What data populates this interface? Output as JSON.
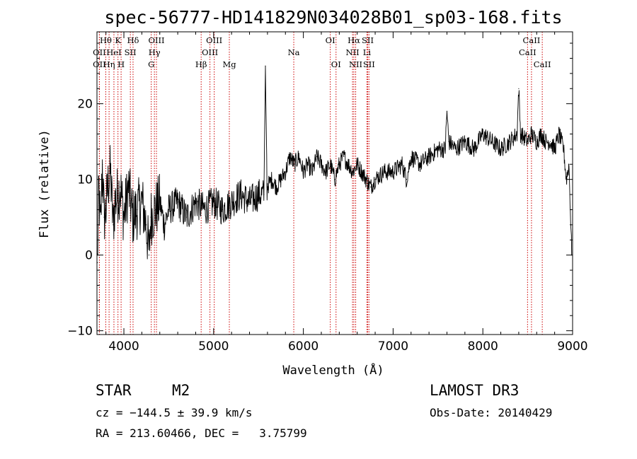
{
  "chart_data": {
    "type": "line",
    "title": "spec-56777-HD141829N034028B01_sp03-168.fits",
    "xlabel": "Wavelength (Å)",
    "ylabel": "Flux (relative)",
    "xlim": [
      3700,
      9000
    ],
    "ylim": [
      -10.5,
      29.5
    ],
    "xticks": [
      4000,
      5000,
      6000,
      7000,
      8000,
      9000
    ],
    "yticks": [
      -10,
      0,
      10,
      20
    ],
    "series": [
      {
        "name": "Flux",
        "x": [
          3705,
          3720,
          3740,
          3760,
          3780,
          3800,
          3820,
          3850,
          3880,
          3900,
          3930,
          3960,
          4000,
          4050,
          4100,
          4150,
          4200,
          4250,
          4280,
          4300,
          4350,
          4400,
          4450,
          4500,
          4600,
          4700,
          4800,
          4900,
          5000,
          5100,
          5200,
          5300,
          5400,
          5500,
          5560,
          5577,
          5595,
          5650,
          5700,
          5800,
          5850,
          5900,
          5950,
          6000,
          6050,
          6100,
          6150,
          6200,
          6250,
          6300,
          6350,
          6400,
          6450,
          6500,
          6550,
          6600,
          6650,
          6700,
          6750,
          6800,
          6900,
          7000,
          7100,
          7150,
          7200,
          7300,
          7400,
          7500,
          7580,
          7600,
          7620,
          7700,
          7800,
          7900,
          8000,
          8100,
          8200,
          8300,
          8380,
          8400,
          8420,
          8500,
          8540,
          8600,
          8650,
          8700,
          8750,
          8800,
          8850,
          8900,
          8930,
          8960,
          8990
        ],
        "values": [
          -1,
          9,
          3,
          12,
          5,
          6,
          9,
          11,
          4,
          7,
          8,
          9,
          5,
          9,
          5,
          6,
          7,
          4,
          0,
          5,
          6,
          7,
          4,
          6,
          7,
          5,
          7,
          6,
          7,
          6,
          7,
          8,
          7,
          8,
          8,
          25,
          9,
          10,
          9,
          11,
          13,
          12,
          13,
          11,
          12,
          11,
          13,
          12,
          11,
          12,
          10,
          12,
          13,
          12,
          11,
          12,
          11,
          10,
          9,
          10,
          11,
          11,
          12,
          10,
          13,
          12,
          13,
          14,
          14,
          19,
          15,
          14,
          15,
          14,
          16,
          15,
          14,
          15,
          16,
          22,
          16,
          15,
          16,
          15,
          16,
          15,
          15,
          14,
          16,
          14,
          10,
          12,
          0
        ]
      }
    ],
    "spectral_lines": [
      {
        "label": "Hθ",
        "wavelength": 3798,
        "row": 1
      },
      {
        "label": "OII",
        "wavelength": 3727,
        "row": 2
      },
      {
        "label": "OII",
        "wavelength": 3727,
        "row": 3
      },
      {
        "label": "Hη",
        "wavelength": 3835,
        "row": 3
      },
      {
        "label": "HeI",
        "wavelength": 3889,
        "row": 2
      },
      {
        "label": "K",
        "wavelength": 3934,
        "row": 1
      },
      {
        "label": "H",
        "wavelength": 3969,
        "row": 3
      },
      {
        "label": "SII",
        "wavelength": 4072,
        "row": 2
      },
      {
        "label": "Hδ",
        "wavelength": 4102,
        "row": 1
      },
      {
        "label": "OIII",
        "wavelength": 4363,
        "row": 1
      },
      {
        "label": "Hγ",
        "wavelength": 4340,
        "row": 2
      },
      {
        "label": "G",
        "wavelength": 4305,
        "row": 3
      },
      {
        "label": "Hβ",
        "wavelength": 4861,
        "row": 3
      },
      {
        "label": "OIII",
        "wavelength": 5007,
        "row": 1
      },
      {
        "label": "OIII",
        "wavelength": 4959,
        "row": 2
      },
      {
        "label": "Mg",
        "wavelength": 5175,
        "row": 3
      },
      {
        "label": "Na",
        "wavelength": 5893,
        "row": 2
      },
      {
        "label": "OI",
        "wavelength": 6300,
        "row": 1
      },
      {
        "label": "OI",
        "wavelength": 6364,
        "row": 3
      },
      {
        "label": "Hα",
        "wavelength": 6563,
        "row": 1
      },
      {
        "label": "NII",
        "wavelength": 6548,
        "row": 2
      },
      {
        "label": "NII",
        "wavelength": 6583,
        "row": 3
      },
      {
        "label": "SII",
        "wavelength": 6717,
        "row": 1
      },
      {
        "label": "Li",
        "wavelength": 6708,
        "row": 2
      },
      {
        "label": "SII",
        "wavelength": 6731,
        "row": 3
      },
      {
        "label": "CaII",
        "wavelength": 8542,
        "row": 1
      },
      {
        "label": "CaII",
        "wavelength": 8498,
        "row": 2
      },
      {
        "label": "CaII",
        "wavelength": 8662,
        "row": 3
      }
    ]
  },
  "info": {
    "object_class": "STAR",
    "subclass": "M2",
    "survey": "LAMOST DR3",
    "cz": "cz = −144.5 ± 39.9 km/s",
    "obs_date": "Obs-Date: 20140429",
    "coords": "RA = 213.60466, DEC =   3.75799"
  },
  "colors": {
    "spectrum": "#000000",
    "line_markers": "#cc0000",
    "background": "#ffffff"
  }
}
